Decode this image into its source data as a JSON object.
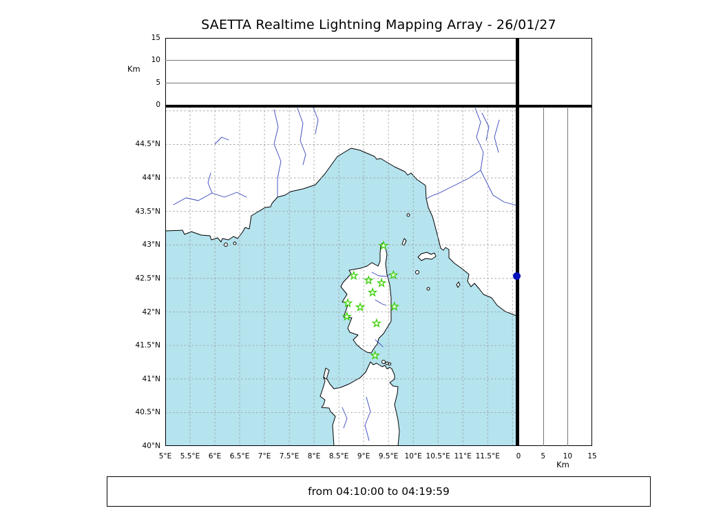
{
  "title": "SAETTA Realtime Lightning Mapping Array - 26/01/27",
  "status_bar": {
    "text": "from 04:10:00 to 04:19:59"
  },
  "alt_axis": {
    "label": "Km",
    "ticks": [
      "0",
      "5",
      "10",
      "15"
    ],
    "tick_values": [
      0,
      5,
      10,
      15
    ],
    "grid": [
      5,
      10
    ],
    "max": 15
  },
  "right_axis": {
    "label": "Km",
    "ticks": [
      "0",
      "5",
      "10",
      "15"
    ],
    "tick_values": [
      0,
      5,
      10,
      15
    ],
    "grid": [
      5,
      10
    ],
    "max": 15
  },
  "map": {
    "lon_ticks": [
      "5°E",
      "5.5°E",
      "6°E",
      "6.5°E",
      "7°E",
      "7.5°E",
      "8°E",
      "8.5°E",
      "9°E",
      "9.5°E",
      "10°E",
      "10.5°E",
      "11°E",
      "11.5°E"
    ],
    "lon_tick_values": [
      5,
      5.5,
      6,
      6.5,
      7,
      7.5,
      8,
      8.5,
      9,
      9.5,
      10,
      10.5,
      11,
      11.5
    ],
    "lat_ticks": [
      "40°N",
      "40.5°N",
      "41°N",
      "41.5°N",
      "42°N",
      "42.5°N",
      "43°N",
      "43.5°N",
      "44°N",
      "44.5°N"
    ],
    "lat_tick_values": [
      40,
      40.5,
      41,
      41.5,
      42,
      42.5,
      43,
      43.5,
      44,
      44.5
    ],
    "lon_grid": [
      5.5,
      6,
      6.5,
      7,
      7.5,
      8,
      8.5,
      9,
      9.5,
      10,
      10.5,
      11,
      11.5,
      12
    ],
    "lat_grid": [
      40.5,
      41,
      41.5,
      42,
      42.5,
      43,
      43.5,
      44,
      44.5,
      45
    ]
  },
  "colors": {
    "sea": "#b5e3ee",
    "land": "#ffffff",
    "coast": "#000000",
    "river": "#3344bb",
    "grid": "#999999",
    "station": "#33cc00",
    "station-fill": "#eeffdd",
    "dot": "#0011bb"
  },
  "chart_data": {
    "type": "scatter",
    "title": "SAETTA Realtime Lightning Mapping Array - 26/01/27",
    "time_window": {
      "from": "04:10:00",
      "to": "04:19:59"
    },
    "lon_range": [
      5,
      12.08
    ],
    "lat_range": [
      40,
      45.06
    ],
    "alt_range_km": [
      0,
      15
    ],
    "stations_lon_lat": [
      [
        9.4,
        42.99
      ],
      [
        8.8,
        42.54
      ],
      [
        9.1,
        42.47
      ],
      [
        9.36,
        42.43
      ],
      [
        9.6,
        42.55
      ],
      [
        9.18,
        42.29
      ],
      [
        8.68,
        42.13
      ],
      [
        8.93,
        42.07
      ],
      [
        9.62,
        42.08
      ],
      [
        8.66,
        41.93
      ],
      [
        9.26,
        41.83
      ],
      [
        9.23,
        41.35
      ]
    ],
    "right_panel_point": {
      "lat": 42.54,
      "alt_km": 0
    },
    "lightning_sources": []
  }
}
